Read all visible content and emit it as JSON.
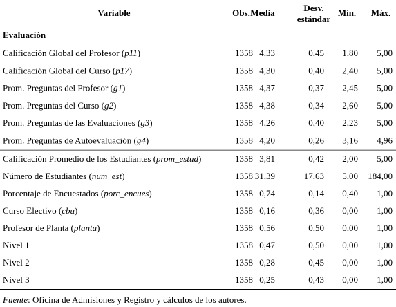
{
  "table": {
    "header": [
      "Variable",
      "Obs.",
      "Media",
      [
        "Desv.",
        "estándar"
      ],
      "Mín.",
      "Máx."
    ],
    "section": "Evaluación",
    "rows": [
      {
        "label": [
          "Calificación Global del Profesor (",
          "p11",
          ")"
        ],
        "values": [
          "1358",
          "4,33",
          "0,45",
          "1,80",
          "5,00"
        ]
      },
      {
        "label": [
          "Calificación Global del Curso (",
          "p17",
          ")"
        ],
        "values": [
          "1358",
          "4,30",
          "0,40",
          "2,40",
          "5,00"
        ]
      },
      {
        "label": [
          "Prom. Preguntas del Profesor (",
          "g1",
          ")"
        ],
        "values": [
          "1358",
          "4,37",
          "0,37",
          "2,45",
          "5,00"
        ]
      },
      {
        "label": [
          "Prom. Preguntas del Curso (",
          "g2",
          ")"
        ],
        "values": [
          "1358",
          "4,38",
          "0,34",
          "2,60",
          "5,00"
        ]
      },
      {
        "label": [
          "Prom. Preguntas de las Evaluaciones (",
          "g3",
          ")"
        ],
        "values": [
          "1358",
          "4,26",
          "0,40",
          "2,23",
          "5,00"
        ]
      },
      {
        "label": [
          "Prom. Preguntas de Autoevaluación (",
          "g4",
          ")"
        ],
        "values": [
          "1358",
          "4,20",
          "0,26",
          "3,16",
          "4,96"
        ]
      },
      {
        "label": [
          "Calificación Promedio de los Estudiantes (",
          "prom_estud",
          ")"
        ],
        "values": [
          "1358",
          "3,81",
          "0,42",
          "2,00",
          "5,00"
        ]
      },
      {
        "label": [
          "Número de Estudiantes (",
          "num_est",
          ")"
        ],
        "values": [
          "1358",
          "31,39",
          "17,63",
          "5,00",
          "184,00"
        ]
      },
      {
        "label": [
          "Porcentaje de Encuestados (",
          "porc_encues",
          ")"
        ],
        "values": [
          "1358",
          "0,74",
          "0,14",
          "0,40",
          "1,00"
        ]
      },
      {
        "label": [
          "Curso Electivo (",
          "cbu",
          ")"
        ],
        "values": [
          "1358",
          "0,16",
          "0,36",
          "0,00",
          "1,00"
        ]
      },
      {
        "label": [
          "Profesor de Planta (",
          "planta",
          ")"
        ],
        "values": [
          "1358",
          "0,56",
          "0,50",
          "0,00",
          "1,00"
        ]
      },
      {
        "label": [
          "Nivel 1"
        ],
        "values": [
          "1358",
          "0,47",
          "0,50",
          "0,00",
          "1,00"
        ]
      },
      {
        "label": [
          "Nivel 2"
        ],
        "values": [
          "1358",
          "0,28",
          "0,45",
          "0,00",
          "1,00"
        ]
      },
      {
        "label": [
          "Nivel 3"
        ],
        "values": [
          "1358",
          "0,25",
          "0,43",
          "0,00",
          "1,00"
        ]
      }
    ],
    "footnote": [
      "Fuente",
      ": Oficina de Admisiones y Registro y cálculos de los autores."
    ]
  }
}
